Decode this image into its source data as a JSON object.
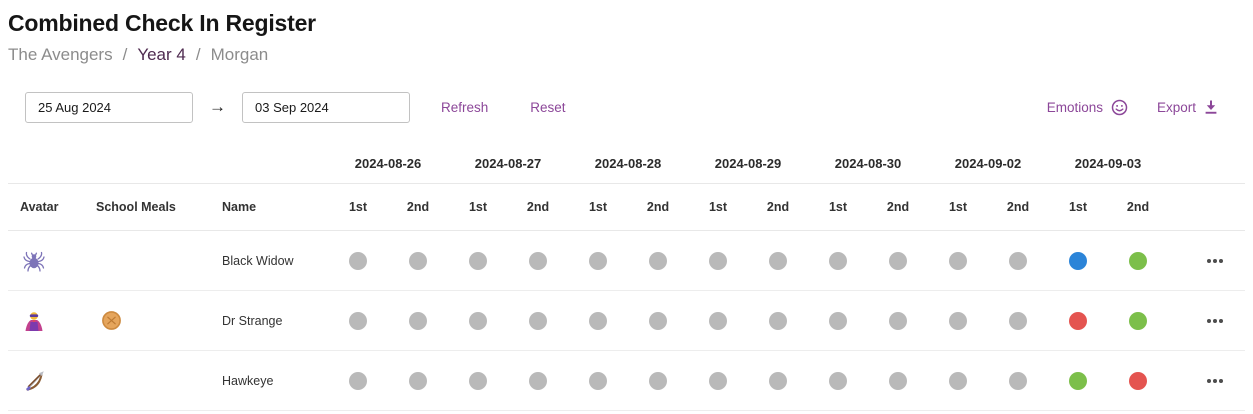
{
  "page": {
    "title": "Combined Check In Register",
    "breadcrumb": {
      "group": "The Avengers",
      "year": "Year 4",
      "student": "Morgan",
      "separator": "/"
    }
  },
  "toolbar": {
    "date_from": "25 Aug 2024",
    "date_to": "03 Sep 2024",
    "arrow": "→",
    "refresh": "Refresh",
    "reset": "Reset",
    "emotions": "Emotions",
    "export": "Export"
  },
  "table": {
    "left_headers": {
      "avatar": "Avatar",
      "school_meals": "School Meals",
      "name": "Name"
    },
    "dates": [
      "2024-08-26",
      "2024-08-27",
      "2024-08-28",
      "2024-08-29",
      "2024-08-30",
      "2024-09-02",
      "2024-09-03"
    ],
    "session_labels": [
      "1st",
      "2nd"
    ],
    "rows": [
      {
        "name": "Black Widow",
        "avatar_icon": "spider-icon",
        "school_meal_icon": null,
        "marks": [
          "gray",
          "gray",
          "gray",
          "gray",
          "gray",
          "gray",
          "gray",
          "gray",
          "gray",
          "gray",
          "gray",
          "gray",
          "blue",
          "green"
        ]
      },
      {
        "name": "Dr Strange",
        "avatar_icon": "supervillain-icon",
        "school_meal_icon": "pie-icon",
        "marks": [
          "gray",
          "gray",
          "gray",
          "gray",
          "gray",
          "gray",
          "gray",
          "gray",
          "gray",
          "gray",
          "gray",
          "gray",
          "red",
          "green"
        ]
      },
      {
        "name": "Hawkeye",
        "avatar_icon": "bow-and-arrow-icon",
        "school_meal_icon": null,
        "marks": [
          "gray",
          "gray",
          "gray",
          "gray",
          "gray",
          "gray",
          "gray",
          "gray",
          "gray",
          "gray",
          "gray",
          "gray",
          "green",
          "red"
        ]
      }
    ]
  },
  "colors": {
    "accent_purple": "#8c4799",
    "breadcrumb_year_purple": "#4f2b50",
    "mark_gray": "#b9b9b9",
    "mark_blue": "#2b84d8",
    "mark_green": "#7cbf4a",
    "mark_red": "#e45450",
    "ellipsis_gray": "#4d4d4d"
  }
}
